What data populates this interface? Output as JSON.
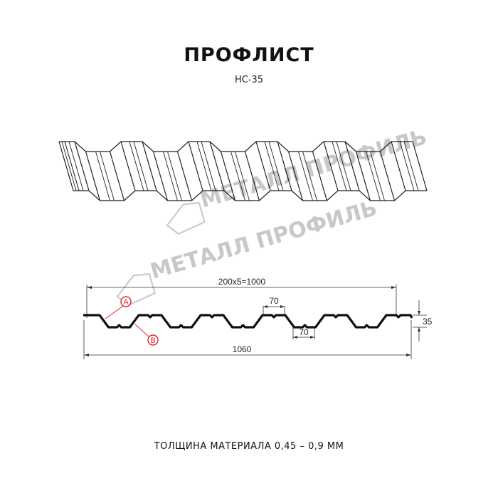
{
  "title": "ПРОФЛИСТ",
  "subtitle": "НС-35",
  "watermark": "МЕТАЛЛ ПРОФИЛЬ",
  "dimensions": {
    "pitch": "200x5=1000",
    "top_width": "70",
    "bottom_width": "70",
    "height": "35",
    "total_width": "1060"
  },
  "markers": {
    "a": "A",
    "b": "B"
  },
  "footer": "ТОЛЩИНА МАТЕРИАЛА 0,45 – 0,9 ММ",
  "colors": {
    "line": "#1a1a1a",
    "marker": "#e0242a",
    "watermark": "#c8c8c8"
  }
}
